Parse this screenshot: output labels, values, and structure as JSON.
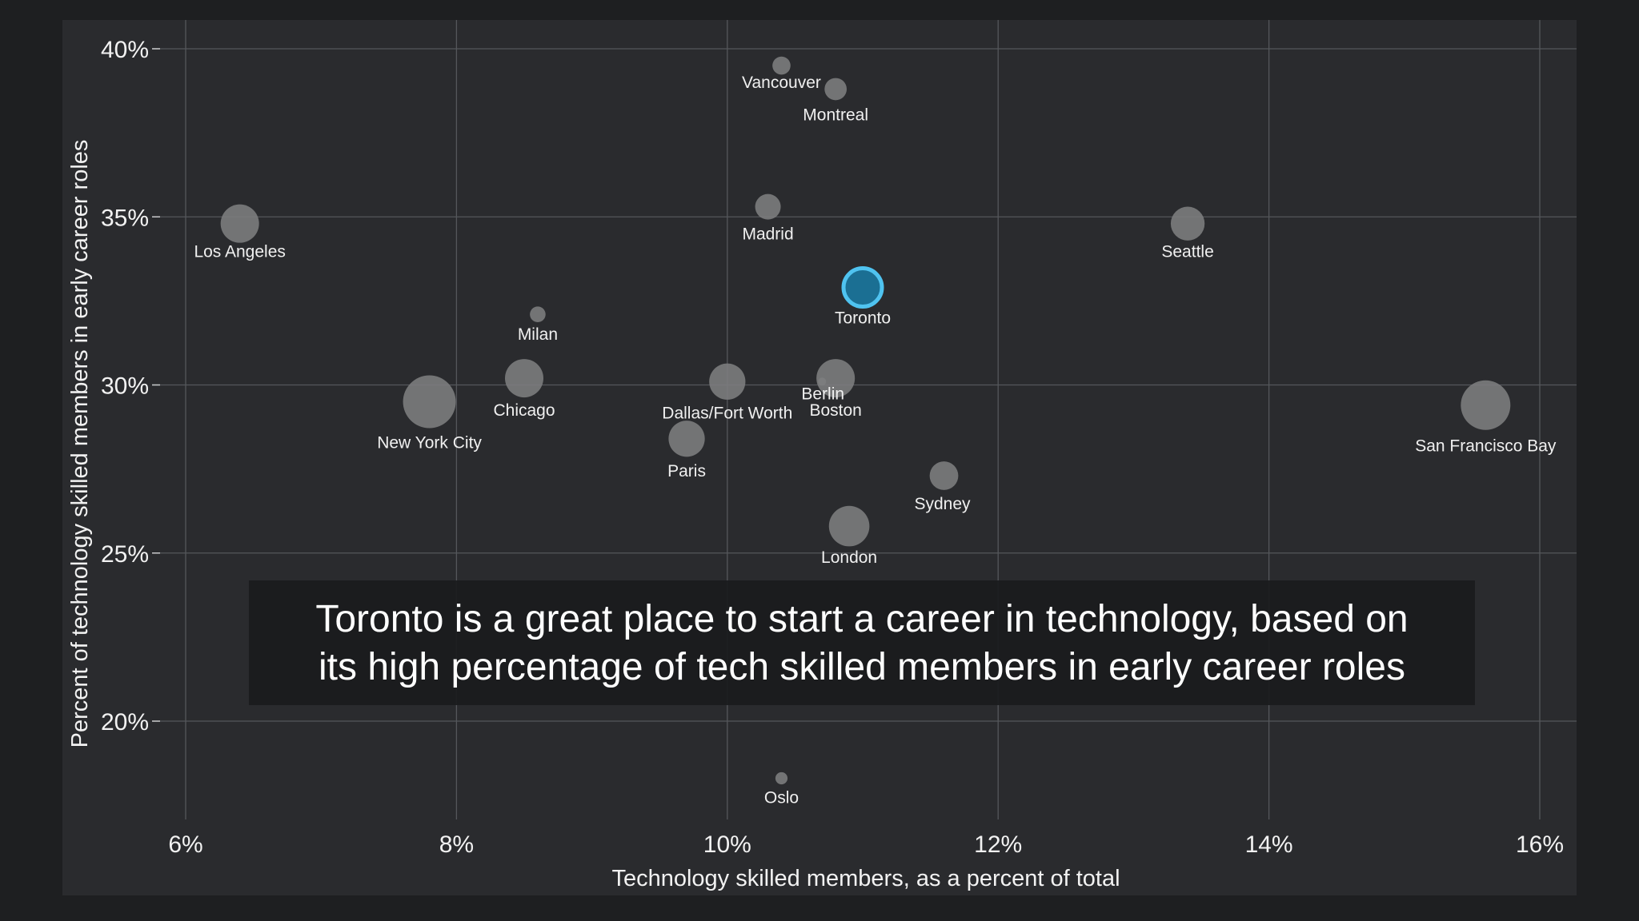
{
  "chart_data": {
    "type": "scatter",
    "xlabel": "Technology skilled members, as a percent of total",
    "ylabel": "Percent of technology skilled members in early career roles",
    "xlim": [
      6,
      16
    ],
    "ylim": [
      20,
      40
    ],
    "x_ticks": [
      "6%",
      "8%",
      "10%",
      "12%",
      "14%",
      "16%"
    ],
    "y_ticks": [
      "40%",
      "35%",
      "30%",
      "25%",
      "20%"
    ],
    "grid": true,
    "highlight_color": "#4fc3f0",
    "points": [
      {
        "label": "Vancouver",
        "x": 10.4,
        "y": 39.5,
        "size": 2
      },
      {
        "label": "Montreal",
        "x": 10.8,
        "y": 38.8,
        "size": 3
      },
      {
        "label": "Los Angeles",
        "x": 6.4,
        "y": 34.8,
        "size": 9
      },
      {
        "label": "Madrid",
        "x": 10.3,
        "y": 35.3,
        "size": 4
      },
      {
        "label": "Seattle",
        "x": 13.4,
        "y": 34.8,
        "size": 7
      },
      {
        "label": "Toronto",
        "x": 11.0,
        "y": 32.9,
        "size": 9,
        "highlight": true
      },
      {
        "label": "Milan",
        "x": 8.6,
        "y": 32.1,
        "size": 1.5
      },
      {
        "label": "Chicago",
        "x": 8.5,
        "y": 30.2,
        "size": 9
      },
      {
        "label": "New York City",
        "x": 7.8,
        "y": 29.5,
        "size": 17
      },
      {
        "label": "Dallas/Fort Worth",
        "x": 10.0,
        "y": 30.1,
        "size": 8
      },
      {
        "label": "Berlin",
        "x": 10.7,
        "y": 30.1,
        "size": 0.4
      },
      {
        "label": "Boston",
        "x": 10.8,
        "y": 30.2,
        "size": 9
      },
      {
        "label": "Paris",
        "x": 9.7,
        "y": 28.4,
        "size": 8
      },
      {
        "label": "San Francisco Bay",
        "x": 15.6,
        "y": 29.4,
        "size": 15
      },
      {
        "label": "Sydney",
        "x": 11.6,
        "y": 27.3,
        "size": 5
      },
      {
        "label": "London",
        "x": 10.9,
        "y": 25.8,
        "size": 10
      },
      {
        "label": "Oslo",
        "x": 10.4,
        "y": 18.3,
        "size": 0.9
      }
    ]
  },
  "caption": {
    "line1": "Toronto is a great place to start a career in technology, based on",
    "line2": "its high percentage of tech skilled members in early career roles"
  }
}
